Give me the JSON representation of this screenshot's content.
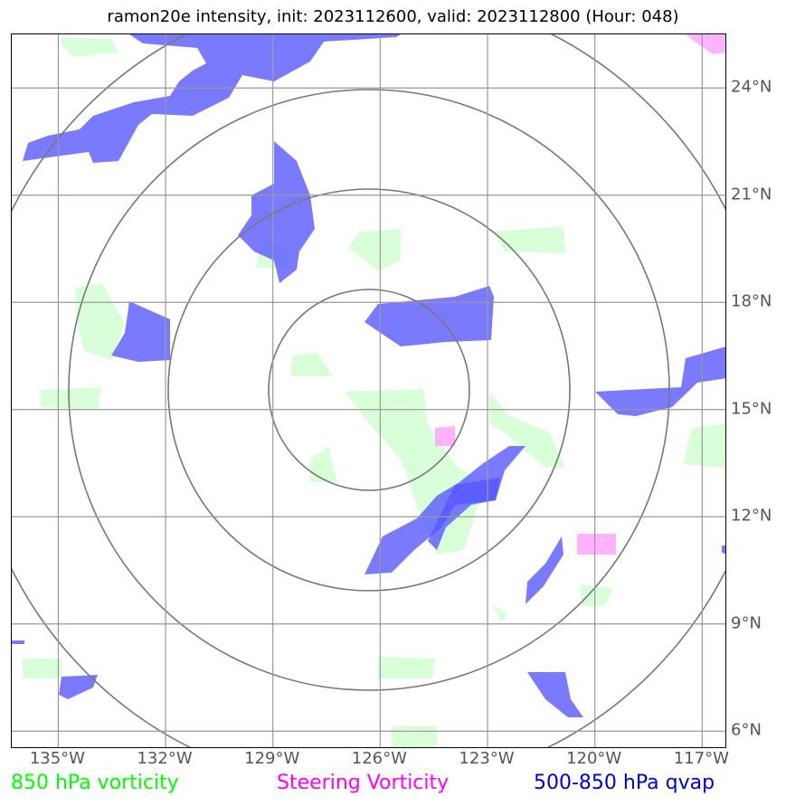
{
  "title": "ramon20e intensity, init: 2023112600, valid: 2023112800 (Hour: 048)",
  "map": {
    "lon_ticks": [
      "135°W",
      "132°W",
      "129°W",
      "126°W",
      "123°W",
      "120°W",
      "117°W"
    ],
    "lat_ticks": [
      "24°N",
      "21°N",
      "18°N",
      "15°N",
      "12°N",
      "9°N",
      "6°N"
    ],
    "lon_values": [
      -135,
      -132,
      -129,
      -126,
      -123,
      -120,
      -117
    ],
    "lat_values": [
      24,
      21,
      18,
      15,
      12,
      9,
      6
    ],
    "extent": {
      "lon_min": -136.3,
      "lon_max": -116.3,
      "lat_min": 5.5,
      "lat_max": 25.5
    },
    "range_rings": {
      "center_lon": -126.3,
      "center_lat": 15.5,
      "radii_deg": [
        2.8,
        5.6,
        8.4,
        11.2
      ]
    },
    "colors": {
      "vorticity_850": "#ccffcc",
      "steering_vorticity": "#ff99ff",
      "qvap": "#5555ff",
      "grid": "#999999",
      "ring": "#777777"
    }
  },
  "legend": [
    {
      "label": "850 hPa vorticity",
      "color": "#00ff00"
    },
    {
      "label": "Steering Vorticity",
      "color": "#ff00ff"
    },
    {
      "label": "500-850 hPa qvap",
      "color": "#0000cc"
    }
  ]
}
